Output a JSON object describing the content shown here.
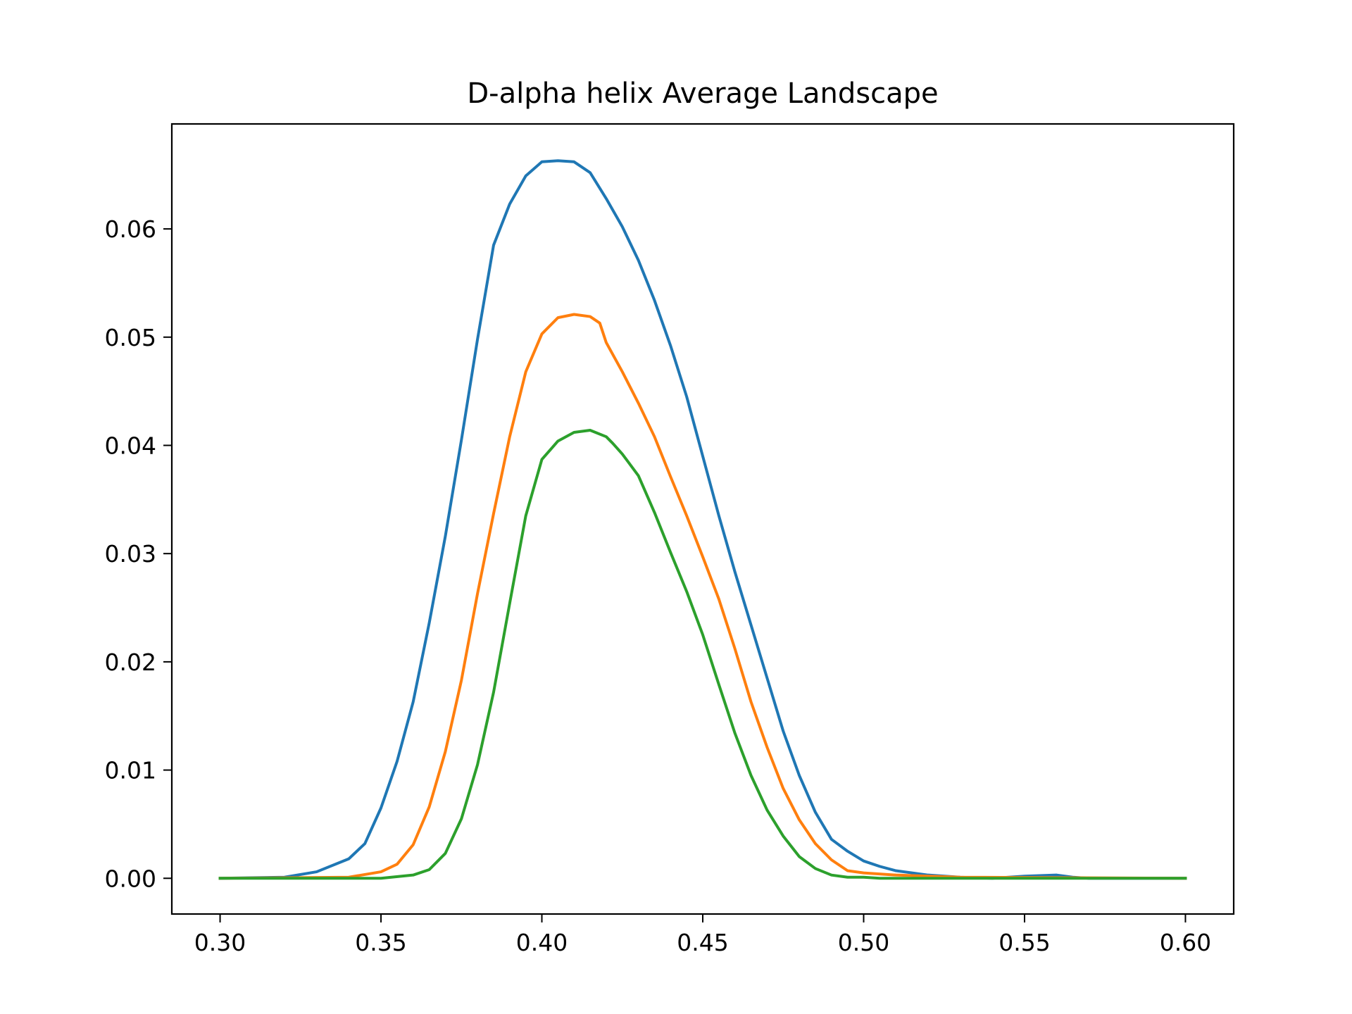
{
  "chart_data": {
    "type": "line",
    "title": "D-alpha helix Average Landscape",
    "xlabel": "",
    "ylabel": "",
    "xlim": [
      0.285,
      0.615
    ],
    "ylim": [
      -0.0033,
      0.0697
    ],
    "xticks": [
      0.3,
      0.35,
      0.4,
      0.45,
      0.5,
      0.55,
      0.6
    ],
    "xtick_labels": [
      "0.30",
      "0.35",
      "0.40",
      "0.45",
      "0.50",
      "0.55",
      "0.60"
    ],
    "yticks": [
      0.0,
      0.01,
      0.02,
      0.03,
      0.04,
      0.05,
      0.06
    ],
    "ytick_labels": [
      "0.00",
      "0.01",
      "0.02",
      "0.03",
      "0.04",
      "0.05",
      "0.06"
    ],
    "grid": false,
    "legend": "none",
    "series": [
      {
        "color": "#1f77b4",
        "x": [
          0.3,
          0.32,
          0.33,
          0.34,
          0.345,
          0.35,
          0.355,
          0.36,
          0.365,
          0.37,
          0.375,
          0.38,
          0.385,
          0.39,
          0.395,
          0.4,
          0.405,
          0.41,
          0.412,
          0.415,
          0.42,
          0.425,
          0.43,
          0.435,
          0.44,
          0.445,
          0.45,
          0.455,
          0.46,
          0.465,
          0.47,
          0.475,
          0.48,
          0.485,
          0.49,
          0.495,
          0.5,
          0.505,
          0.51,
          0.52,
          0.53,
          0.54,
          0.55,
          0.56,
          0.565,
          0.57,
          0.6
        ],
        "y": [
          0.0,
          0.0001,
          0.0006,
          0.0018,
          0.0032,
          0.0065,
          0.0108,
          0.0163,
          0.0236,
          0.0316,
          0.0405,
          0.0498,
          0.0585,
          0.0623,
          0.0649,
          0.0662,
          0.0663,
          0.0662,
          0.0658,
          0.0652,
          0.0628,
          0.0602,
          0.0571,
          0.0534,
          0.0492,
          0.0445,
          0.039,
          0.0335,
          0.0283,
          0.0234,
          0.0185,
          0.0136,
          0.0095,
          0.0061,
          0.0036,
          0.0025,
          0.0016,
          0.0011,
          0.0007,
          0.0003,
          0.0001,
          0.0,
          0.0002,
          0.0003,
          0.0001,
          0.0,
          0.0
        ]
      },
      {
        "color": "#ff7f0e",
        "x": [
          0.3,
          0.34,
          0.35,
          0.355,
          0.36,
          0.365,
          0.37,
          0.375,
          0.38,
          0.385,
          0.39,
          0.395,
          0.4,
          0.405,
          0.41,
          0.415,
          0.418,
          0.42,
          0.425,
          0.43,
          0.435,
          0.44,
          0.445,
          0.45,
          0.455,
          0.46,
          0.465,
          0.47,
          0.475,
          0.48,
          0.485,
          0.49,
          0.495,
          0.5,
          0.51,
          0.52,
          0.53,
          0.6
        ],
        "y": [
          0.0,
          0.0001,
          0.0006,
          0.0013,
          0.0031,
          0.0066,
          0.0117,
          0.0183,
          0.0263,
          0.0337,
          0.0408,
          0.0468,
          0.0503,
          0.0518,
          0.0521,
          0.0519,
          0.0513,
          0.0495,
          0.0468,
          0.0439,
          0.0408,
          0.0371,
          0.0335,
          0.0297,
          0.0258,
          0.0212,
          0.0163,
          0.0121,
          0.0083,
          0.0054,
          0.0032,
          0.0017,
          0.0007,
          0.0005,
          0.0003,
          0.0002,
          0.0001,
          0.0
        ]
      },
      {
        "color": "#2ca02c",
        "x": [
          0.3,
          0.35,
          0.36,
          0.365,
          0.37,
          0.375,
          0.38,
          0.385,
          0.39,
          0.395,
          0.4,
          0.405,
          0.41,
          0.415,
          0.42,
          0.422,
          0.425,
          0.43,
          0.435,
          0.44,
          0.445,
          0.45,
          0.455,
          0.46,
          0.465,
          0.47,
          0.475,
          0.48,
          0.485,
          0.49,
          0.495,
          0.5,
          0.505,
          0.6
        ],
        "y": [
          0.0,
          0.0,
          0.0003,
          0.0008,
          0.0023,
          0.0055,
          0.0105,
          0.0172,
          0.0254,
          0.0335,
          0.0387,
          0.0404,
          0.0412,
          0.0414,
          0.0408,
          0.0402,
          0.0392,
          0.0372,
          0.0338,
          0.0301,
          0.0265,
          0.0225,
          0.0179,
          0.0134,
          0.0095,
          0.0063,
          0.0039,
          0.002,
          0.0009,
          0.0003,
          0.0001,
          0.0001,
          0.0,
          0.0
        ]
      }
    ]
  }
}
